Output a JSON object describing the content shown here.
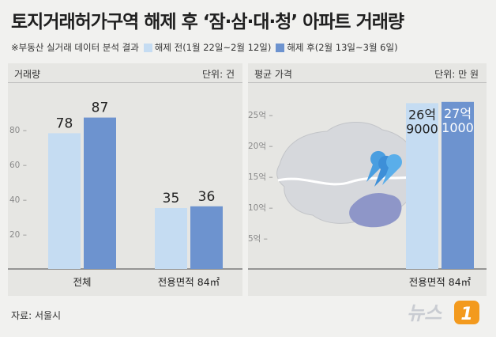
{
  "title": "토지거래허가구역 해제 후 ‘잠·삼·대·청’ 아파트 거래량",
  "note": "※부동산 실거래 데이터 분석 결과",
  "legend": [
    {
      "label": "해제 전(1월 22일~2월 12일)",
      "color": "#c5dcf2"
    },
    {
      "label": "해제 후(2월 13일~3월 6일)",
      "color": "#6d93cf"
    }
  ],
  "source": "자료: 서울시",
  "logo_text": "뉴스1",
  "chart_data": [
    {
      "type": "bar",
      "header_left": "거래량",
      "header_right": "단위: 건",
      "categories": [
        "전체",
        "전용면적 84㎡"
      ],
      "series": [
        {
          "name": "해제 전(1월 22일~2월 12일)",
          "values": [
            78,
            35
          ],
          "labels": [
            "78",
            "35"
          ]
        },
        {
          "name": "해제 후(2월 13일~3월 6일)",
          "values": [
            87,
            36
          ],
          "labels": [
            "87",
            "36"
          ]
        }
      ],
      "yticks": [
        20,
        40,
        60,
        80
      ],
      "ylim": [
        0,
        100
      ]
    },
    {
      "type": "bar",
      "header_left": "평균 가격",
      "header_right": "단위: 만 원",
      "categories": [
        "전용면적 84㎡"
      ],
      "series": [
        {
          "name": "해제 전(1월 22일~2월 12일)",
          "values": [
            269000
          ],
          "labels": [
            "26억\n9000"
          ]
        },
        {
          "name": "해제 후(2월 13일~3월 6일)",
          "values": [
            271000
          ],
          "labels": [
            "27억\n1000"
          ]
        }
      ],
      "yticks": [
        50000,
        100000,
        150000,
        200000,
        250000
      ],
      "ytick_labels": [
        "5억",
        "10억",
        "15억",
        "20억",
        "25억"
      ],
      "ylim": [
        0,
        290000
      ]
    }
  ]
}
